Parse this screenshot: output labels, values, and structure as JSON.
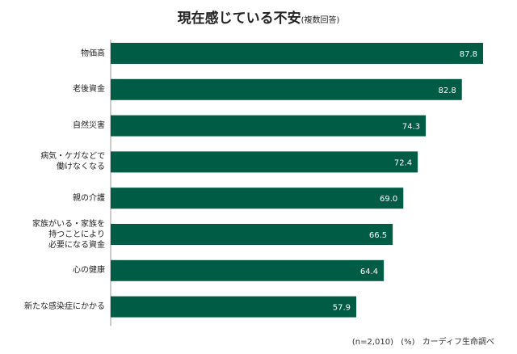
{
  "chart_data": {
    "type": "bar",
    "orientation": "horizontal",
    "title": "現在感じている不安",
    "subtitle": "(複数回答)",
    "categories": [
      "物価高",
      "老後資金",
      "自然災害",
      "病気・ケガなどで\n働けなくなる",
      "親の介護",
      "家族がいる・家族を\n持つことにより\n必要になる資金",
      "心の健康",
      "新たな感染症にかかる"
    ],
    "values": [
      87.8,
      82.8,
      74.3,
      72.4,
      69.0,
      66.5,
      64.4,
      57.9
    ],
    "value_labels": [
      "87.8",
      "82.8",
      "74.3",
      "72.4",
      "69.0",
      "66.5",
      "64.4",
      "57.9"
    ],
    "xlim": [
      0,
      90
    ],
    "grid": false,
    "bar_color": "#005c45",
    "value_label_color": "#ffffff"
  },
  "footer": {
    "sample": "(n=2,010)",
    "unit": "(%)",
    "source": "カーディフ生命調べ"
  }
}
